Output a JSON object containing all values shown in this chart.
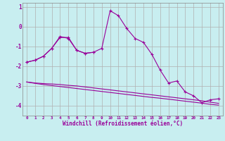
{
  "xlabel": "Windchill (Refroidissement éolien,°C)",
  "background_color": "#c8eef0",
  "grid_color": "#b0b0b0",
  "line_color": "#990099",
  "x_values": [
    0,
    1,
    2,
    3,
    4,
    5,
    6,
    7,
    8,
    9,
    10,
    11,
    12,
    13,
    14,
    15,
    16,
    17,
    18,
    19,
    20,
    21,
    22,
    23
  ],
  "line2": [
    -1.8,
    -1.7,
    -1.5,
    -1.1,
    -0.5,
    -0.6,
    -1.2,
    -1.35,
    -1.3,
    -1.1,
    0.8,
    0.55,
    -0.1,
    -0.6,
    -0.8,
    -1.4,
    -2.2,
    -2.85,
    -2.75,
    -3.3,
    -3.5,
    -3.85,
    -3.7,
    -3.65
  ],
  "line1_x": [
    0,
    1,
    2,
    3,
    4,
    5,
    6,
    7,
    8
  ],
  "line1_y": [
    -1.8,
    -1.7,
    -1.5,
    -1.1,
    -0.55,
    -0.55,
    -1.2,
    -1.35,
    -1.3
  ],
  "line3": [
    -2.8,
    -2.85,
    -2.88,
    -2.9,
    -2.93,
    -2.97,
    -3.0,
    -3.05,
    -3.1,
    -3.15,
    -3.2,
    -3.25,
    -3.3,
    -3.35,
    -3.4,
    -3.45,
    -3.5,
    -3.55,
    -3.6,
    -3.65,
    -3.7,
    -3.75,
    -3.82,
    -3.88
  ],
  "line4": [
    -2.8,
    -2.87,
    -2.93,
    -2.98,
    -3.03,
    -3.08,
    -3.13,
    -3.18,
    -3.23,
    -3.28,
    -3.33,
    -3.38,
    -3.43,
    -3.48,
    -3.53,
    -3.58,
    -3.62,
    -3.67,
    -3.72,
    -3.77,
    -3.82,
    -3.87,
    -3.93,
    -3.97
  ],
  "ylim": [
    -4.5,
    1.2
  ],
  "yticks": [
    1,
    0,
    -1,
    -2,
    -3,
    -4
  ],
  "xlim": [
    -0.5,
    23.5
  ]
}
